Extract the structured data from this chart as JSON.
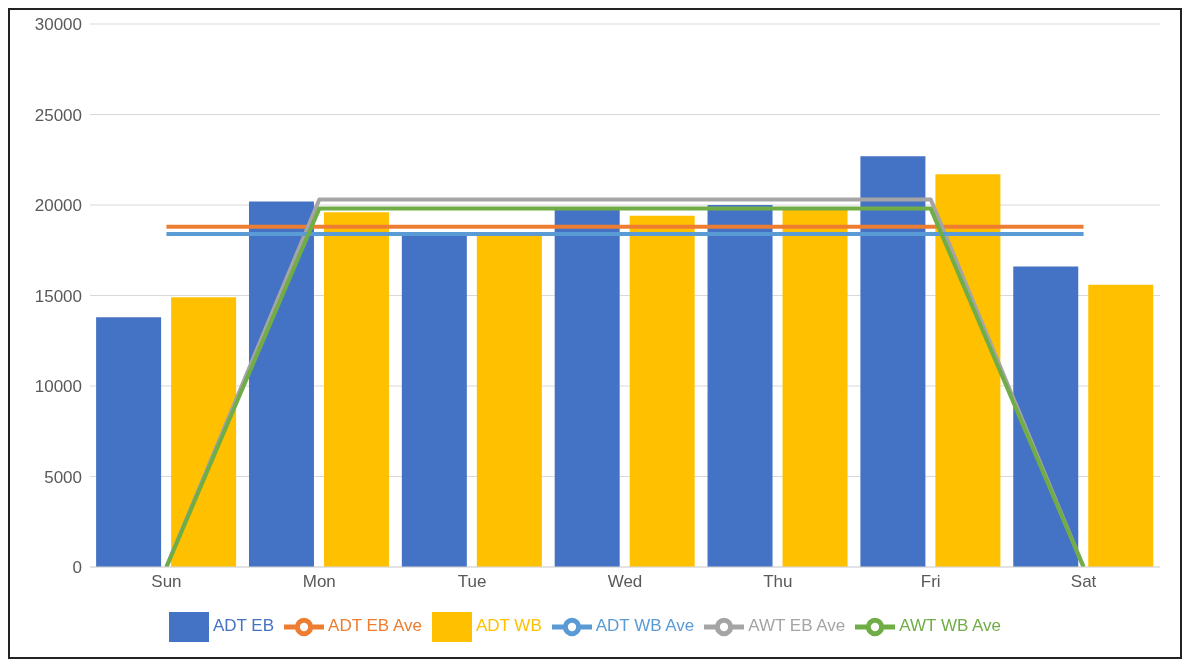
{
  "chart_data": {
    "type": "bar",
    "categories": [
      "Sun",
      "Mon",
      "Tue",
      "Wed",
      "Thu",
      "Fri",
      "Sat"
    ],
    "series": [
      {
        "name": "ADT EB",
        "color": "#4472c4",
        "values": [
          13800,
          20200,
          18400,
          19800,
          20000,
          22700,
          16600
        ]
      },
      {
        "name": "ADT WB",
        "color": "#ffc000",
        "values": [
          14900,
          19600,
          18400,
          19400,
          19800,
          21700,
          15600
        ]
      },
      {
        "name": "ADT EB Ave",
        "type": "line",
        "color": "#ed7d31",
        "values": [
          18800,
          18800,
          18800,
          18800,
          18800,
          18800,
          18800
        ]
      },
      {
        "name": "AWT EB Ave",
        "type": "line",
        "color": "#a5a5a5",
        "values": [
          0,
          20300,
          20300,
          20300,
          20300,
          20300,
          0
        ]
      },
      {
        "name": "ADT WB Ave",
        "type": "line",
        "color": "#5b9bd5",
        "values": [
          18400,
          18400,
          18400,
          18400,
          18400,
          18400,
          18400
        ]
      },
      {
        "name": "AWT WB Ave",
        "type": "line",
        "color": "#70ad47",
        "values": [
          0,
          19800,
          19800,
          19800,
          19800,
          19800,
          0
        ]
      }
    ],
    "ylim": [
      0,
      30000
    ],
    "yticks": [
      0,
      5000,
      10000,
      15000,
      20000,
      25000,
      30000
    ],
    "grid": "y",
    "legend": "bottom",
    "marker": "none"
  }
}
